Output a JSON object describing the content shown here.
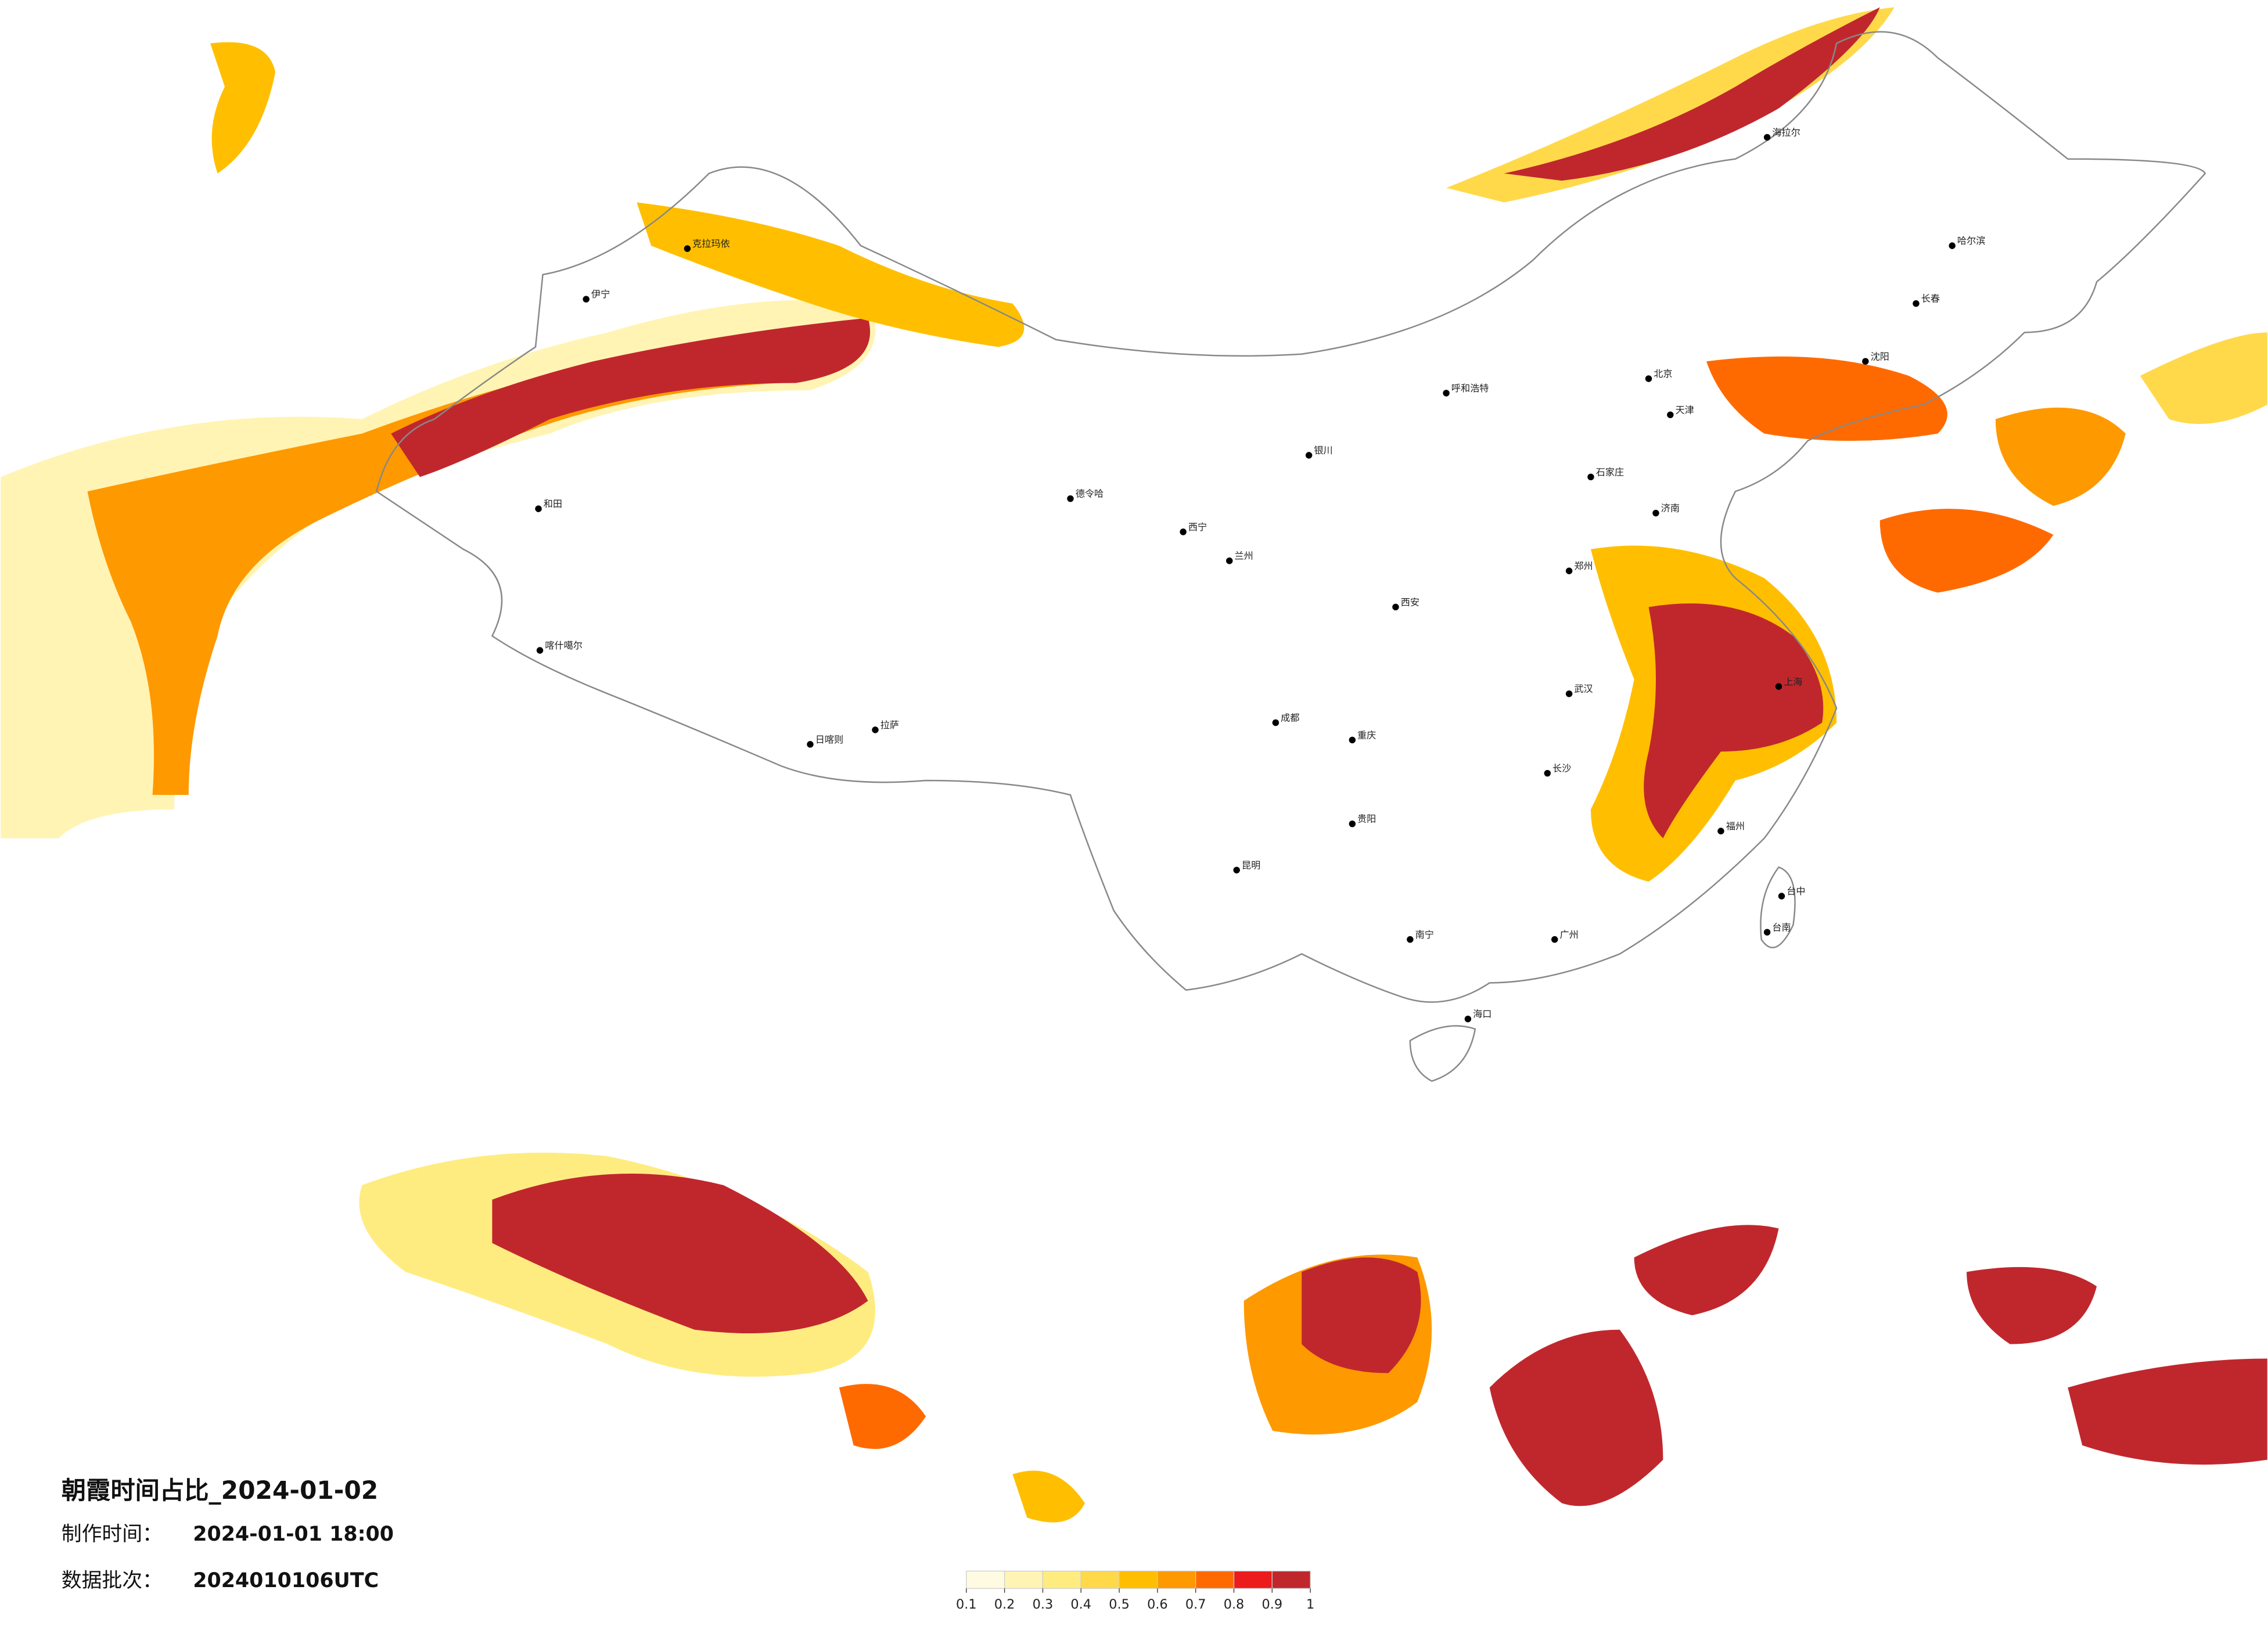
{
  "header": {
    "title": "朝霞时间占比_2024-01-02"
  },
  "info": [
    {
      "label": "制作时间：",
      "value": "2024-01-01 18:00"
    },
    {
      "label": "数据批次：",
      "value": "2024010106UTC"
    }
  ],
  "colorbar": {
    "ticks": [
      0.1,
      0.2,
      0.3,
      0.4,
      0.5,
      0.6,
      0.7,
      0.8,
      0.9,
      1
    ],
    "colors": [
      "#fffbe2",
      "#fff4b3",
      "#ffec80",
      "#ffd94a",
      "#ffbf00",
      "#ff9900",
      "#ff6a00",
      "#ec1c1c",
      "#c0272d"
    ]
  },
  "cities": [
    "伊宁",
    "克拉玛依",
    "和田",
    "喀什噶尔",
    "德令哈",
    "拉萨",
    "日喀则",
    "西宁",
    "兰州",
    "银川",
    "呼和浩特",
    "北京",
    "天津",
    "石家庄",
    "哈尔滨",
    "长春",
    "沈阳",
    "海拉尔",
    "成都",
    "重庆",
    "昆明",
    "贵阳",
    "南宁",
    "广州",
    "福州",
    "台中",
    "台南",
    "上海",
    "武汉",
    "长沙",
    "西安",
    "郑州",
    "济南",
    "海口"
  ]
}
